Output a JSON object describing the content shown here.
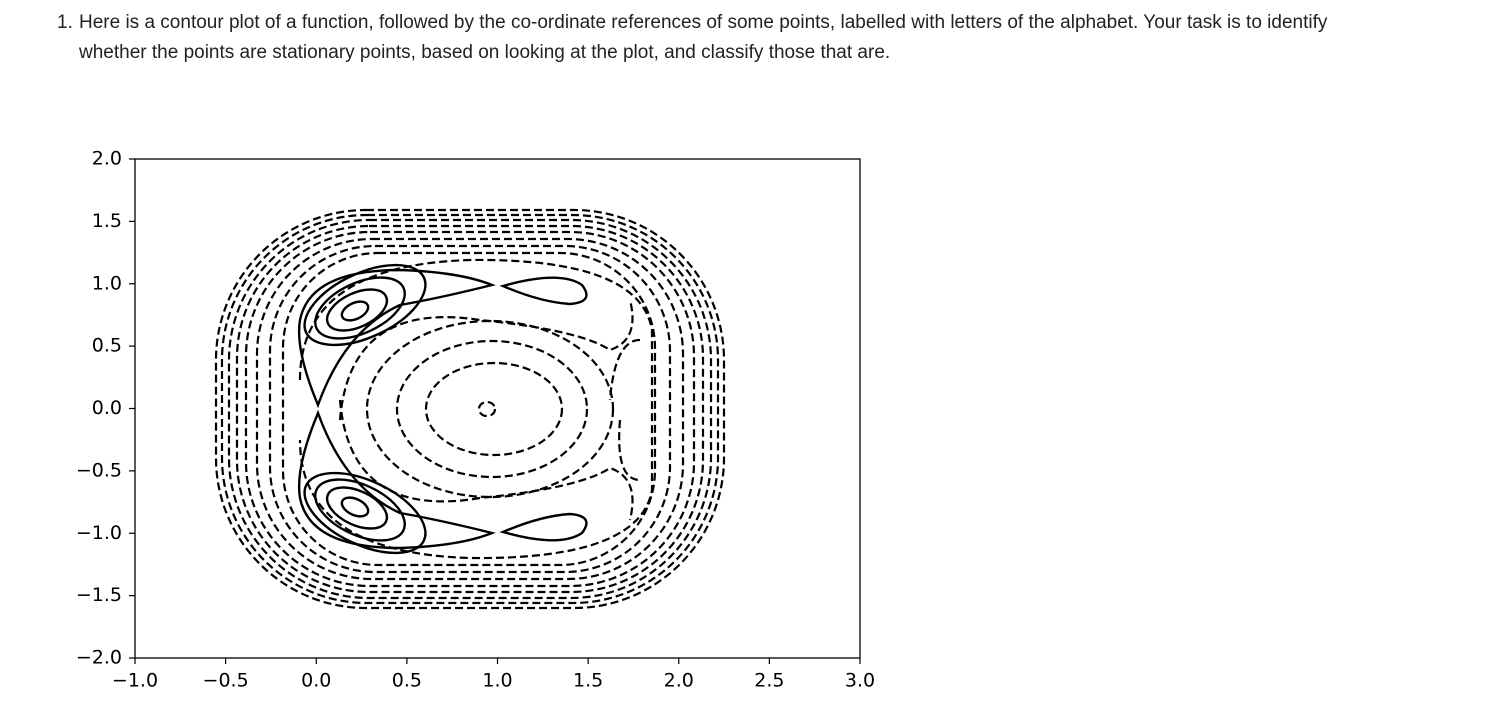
{
  "question": {
    "number": "1.",
    "text": "Here is a contour plot of a function, followed by the co-ordinate references of some points, labelled with letters of the alphabet. Your task is to identify whether the points are stationary points, based on looking at the plot, and classify those that are."
  },
  "chart_data": {
    "type": "contour",
    "xlim": [
      -1,
      3
    ],
    "ylim": [
      -2,
      2
    ],
    "xticks": [
      {
        "value": -1,
        "label": "−1.0"
      },
      {
        "value": -0.5,
        "label": "−0.5"
      },
      {
        "value": 0,
        "label": "0.0"
      },
      {
        "value": 0.5,
        "label": "0.5"
      },
      {
        "value": 1,
        "label": "1.0"
      },
      {
        "value": 1.5,
        "label": "1.5"
      },
      {
        "value": 2,
        "label": "2.0"
      },
      {
        "value": 2.5,
        "label": "2.5"
      },
      {
        "value": 3,
        "label": "3.0"
      }
    ],
    "yticks": [
      {
        "value": -2,
        "label": "−2.0"
      },
      {
        "value": -1.5,
        "label": "−1.5"
      },
      {
        "value": -1,
        "label": "−1.0"
      },
      {
        "value": -0.5,
        "label": "−0.5"
      },
      {
        "value": 0,
        "label": "0.0"
      },
      {
        "value": 0.5,
        "label": "0.5"
      },
      {
        "value": 1,
        "label": "1.0"
      },
      {
        "value": 1.5,
        "label": "1.5"
      },
      {
        "value": 2,
        "label": "2.0"
      }
    ],
    "color": "#000000"
  }
}
